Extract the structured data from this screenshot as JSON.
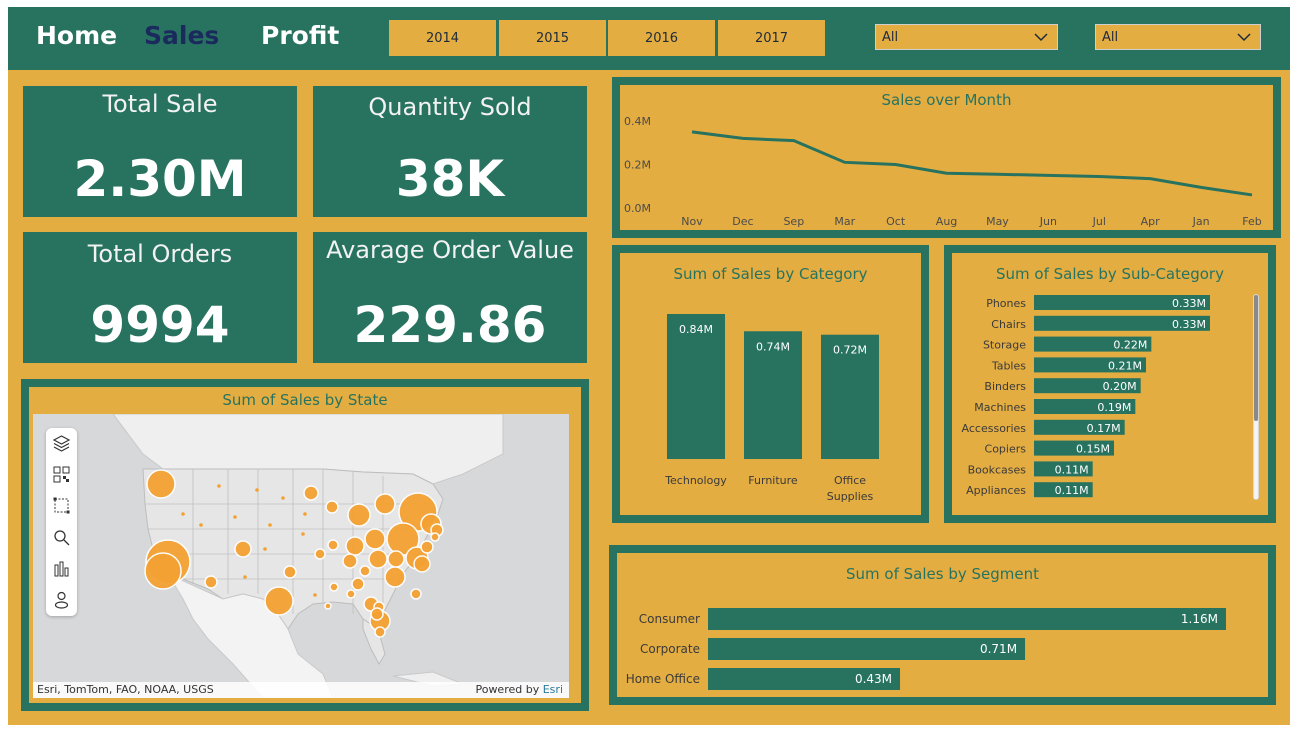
{
  "nav": {
    "home": "Home",
    "sales": "Sales",
    "profit": "Profit"
  },
  "years": [
    "2014",
    "2015",
    "2016",
    "2017"
  ],
  "filters": {
    "filter1": "All",
    "filter2": "All"
  },
  "kpis": {
    "total_sale_label": "Total Sale",
    "total_sale_value": "2.30M",
    "quantity_label": "Quantity Sold",
    "quantity_value": "38K",
    "orders_label": "Total Orders",
    "orders_value": "9994",
    "aov_label": "Avarage Order Value",
    "aov_value": "229.86"
  },
  "colors": {
    "teal": "#27735f",
    "gold": "#e4ad42",
    "bubble": "#f4a132"
  },
  "map": {
    "title": "Sum of Sales by State",
    "attribution": "Esri, TomTom, FAO, NOAA, USGS",
    "powered_by": "Powered by",
    "powered_brand": "Esri",
    "tool_icons": [
      "layers-icon",
      "qr-code-icon",
      "select-box-icon",
      "search-icon",
      "bar-chart-icon",
      "person-icon"
    ]
  },
  "chart_data": [
    {
      "id": "month",
      "type": "line",
      "title": "Sales over Month",
      "categories": [
        "Nov",
        "Dec",
        "Sep",
        "Mar",
        "Oct",
        "Aug",
        "May",
        "Jun",
        "Jul",
        "Apr",
        "Jan",
        "Feb"
      ],
      "values": [
        0.35,
        0.32,
        0.31,
        0.21,
        0.2,
        0.16,
        0.155,
        0.15,
        0.145,
        0.135,
        0.095,
        0.06
      ],
      "yticks": [
        "0.0M",
        "0.2M",
        "0.4M"
      ],
      "ylim": [
        0,
        0.4
      ]
    },
    {
      "id": "category",
      "type": "bar",
      "title": "Sum of Sales by Category",
      "categories": [
        "Technology",
        "Furniture",
        "Office Supplies"
      ],
      "values": [
        0.84,
        0.74,
        0.72
      ],
      "labels": [
        "0.84M",
        "0.74M",
        "0.72M"
      ]
    },
    {
      "id": "subcategory",
      "type": "bar",
      "title": "Sum of Sales by Sub-Category",
      "categories": [
        "Phones",
        "Chairs",
        "Storage",
        "Tables",
        "Binders",
        "Machines",
        "Accessories",
        "Copiers",
        "Bookcases",
        "Appliances"
      ],
      "values": [
        0.33,
        0.33,
        0.22,
        0.21,
        0.2,
        0.19,
        0.17,
        0.15,
        0.11,
        0.11
      ],
      "labels": [
        "0.33M",
        "0.33M",
        "0.22M",
        "0.21M",
        "0.20M",
        "0.19M",
        "0.17M",
        "0.15M",
        "0.11M",
        "0.11M"
      ]
    },
    {
      "id": "segment",
      "type": "bar",
      "title": "Sum of Sales by Segment",
      "categories": [
        "Consumer",
        "Corporate",
        "Home Office"
      ],
      "values": [
        1.16,
        0.71,
        0.43
      ],
      "labels": [
        "1.16M",
        "0.71M",
        "0.43M"
      ]
    }
  ]
}
